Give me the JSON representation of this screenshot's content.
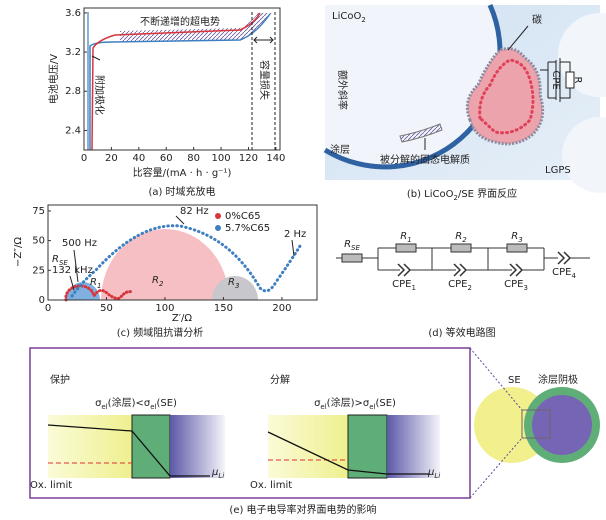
{
  "panel_a": {
    "caption": "(a) 时域充放电",
    "ylabel": "电池电压/V",
    "xlabel": "比容量/(mA · h · g⁻¹)",
    "annotation_overpotential": "不断递增的超电势",
    "annotation_polarization": "附加极化",
    "annotation_capacity_loss": "容量损失",
    "xlim": [
      0,
      143
    ],
    "ylim": [
      2.2,
      3.65
    ],
    "xticks": [
      0,
      20,
      40,
      60,
      80,
      100,
      120,
      140
    ],
    "yticks": [
      2.4,
      2.8,
      3.2,
      3.6
    ]
  },
  "panel_b": {
    "caption": [
      "(b) LiCoO",
      "2",
      "/SE 界面反应"
    ],
    "licoo2": [
      "LiCoO",
      "2"
    ],
    "carbon": "碳",
    "extra_slope": "额外斜率",
    "cpe": "CPE",
    "r": "R",
    "coating": "涂层",
    "decomposed_se": "被分解的固态电解质",
    "lgps": "LGPS"
  },
  "panel_c": {
    "caption": "(c) 频域阻抗谱分析",
    "ylabel": "−Z″/Ω",
    "xlabel": "Z′/Ω",
    "legend": [
      {
        "name": "0%C65",
        "color": "#d6363b"
      },
      {
        "name": "5.7%C65",
        "color": "#3d7fc0"
      }
    ],
    "freq_82": "82 Hz",
    "freq_500": "500 Hz",
    "freq_2": "2 Hz",
    "freq_132k": "132 kHz",
    "resistors": [
      [
        "R",
        "SE"
      ],
      [
        "R",
        "1"
      ],
      [
        "R",
        "2"
      ],
      [
        "R",
        "3"
      ]
    ],
    "xlim": [
      0,
      230
    ],
    "ylim": [
      0,
      80
    ],
    "xticks": [
      0,
      50,
      100,
      150,
      200
    ],
    "yticks": [
      0,
      25,
      50,
      75
    ]
  },
  "panel_d": {
    "caption": "(d) 等效电路图",
    "resistors": [
      [
        "R",
        "SE"
      ],
      [
        "R",
        "1"
      ],
      [
        "R",
        "2"
      ],
      [
        "R",
        "3"
      ]
    ],
    "cpes": [
      [
        "CPE",
        "1"
      ],
      [
        "CPE",
        "2"
      ],
      [
        "CPE",
        "3"
      ],
      [
        "CPE",
        "4"
      ]
    ]
  },
  "panel_e": {
    "caption": "(e) 电子电导率对界面电势的影响",
    "left": {
      "title": "保护",
      "condition": [
        "σ",
        "el",
        "(涂层)<σ",
        "el",
        "(SE)"
      ],
      "ox_limit": "Ox. limit",
      "mu": [
        "μ",
        "Li"
      ]
    },
    "right": {
      "title": "分解",
      "condition": [
        "σ",
        "el",
        "(涂层)>σ",
        "el",
        "(SE)"
      ],
      "ox_limit": "Ox. limit",
      "mu": [
        "μ",
        "Li"
      ]
    },
    "se": "SE",
    "coated_cathode": "涂层阴极"
  }
}
